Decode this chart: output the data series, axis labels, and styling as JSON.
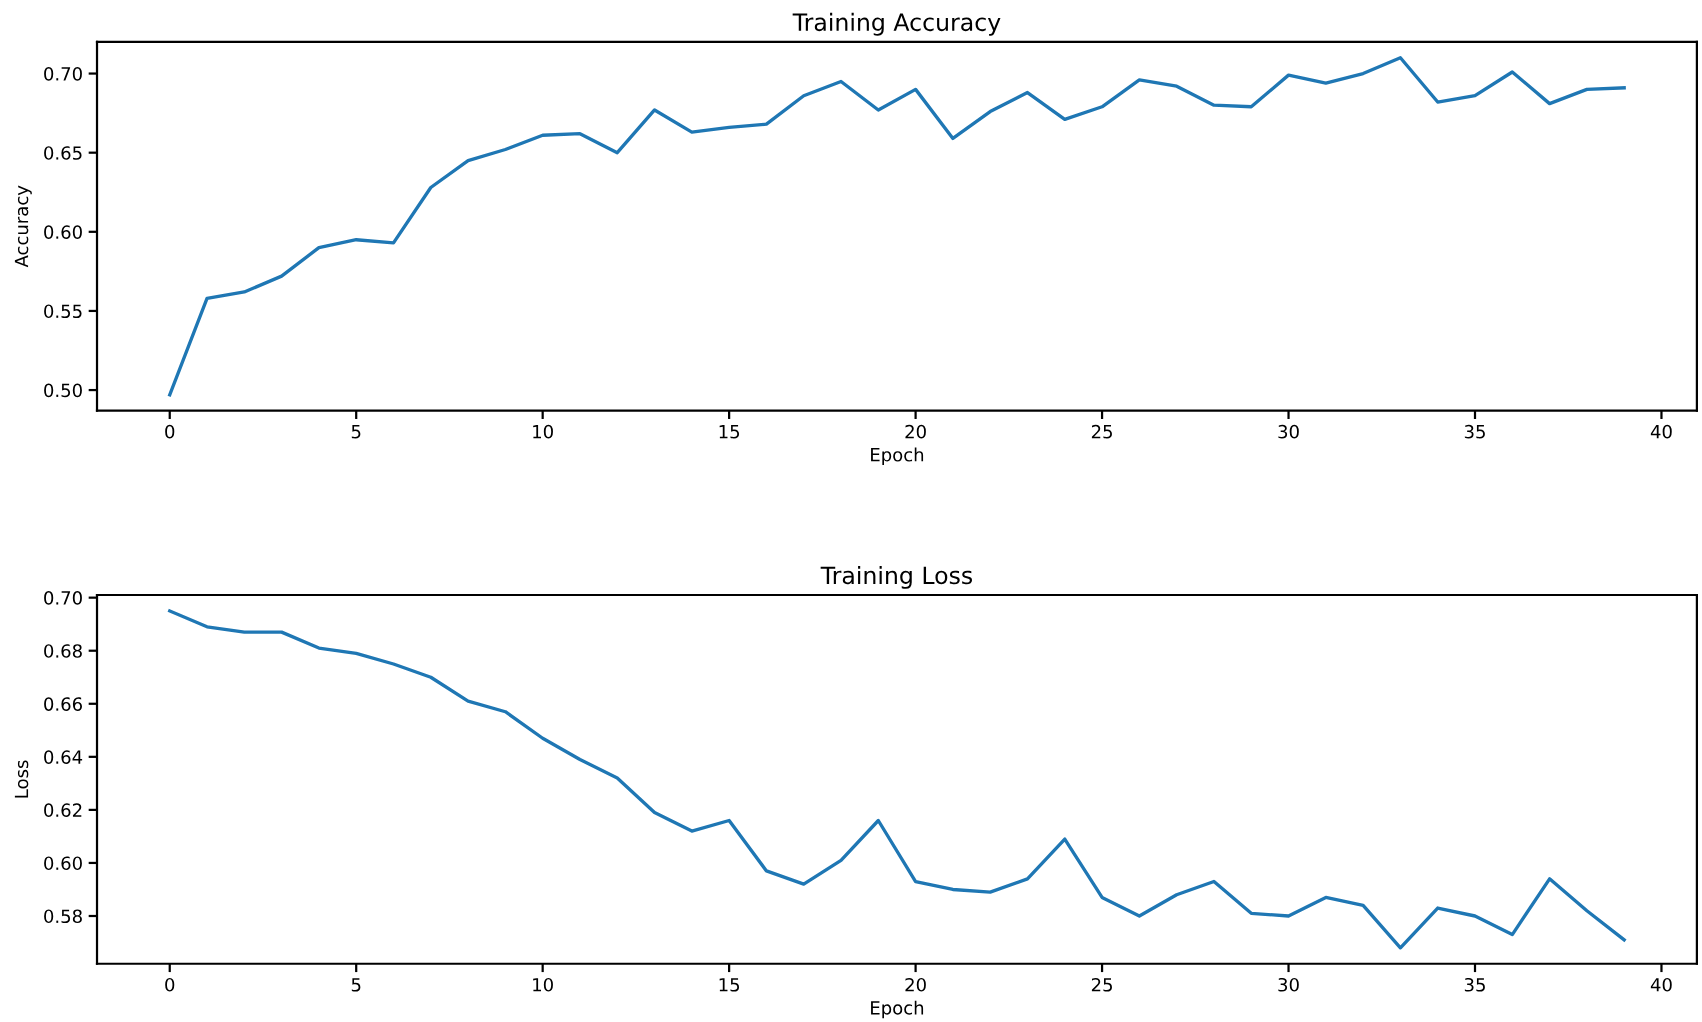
{
  "chart_data": [
    {
      "type": "line",
      "title": "Training Accuracy",
      "xlabel": "Epoch",
      "ylabel": "Accuracy",
      "x": [
        0,
        1,
        2,
        3,
        4,
        5,
        6,
        7,
        8,
        9,
        10,
        11,
        12,
        13,
        14,
        15,
        16,
        17,
        18,
        19,
        20,
        21,
        22,
        23,
        24,
        25,
        26,
        27,
        28,
        29,
        30,
        31,
        32,
        33,
        34,
        35,
        36,
        37,
        38,
        39
      ],
      "series": [
        {
          "color": "#1f77b4",
          "values": [
            0.497,
            0.558,
            0.562,
            0.572,
            0.59,
            0.595,
            0.593,
            0.628,
            0.645,
            0.652,
            0.661,
            0.662,
            0.65,
            0.677,
            0.663,
            0.666,
            0.668,
            0.686,
            0.695,
            0.677,
            0.69,
            0.659,
            0.676,
            0.688,
            0.671,
            0.679,
            0.696,
            0.692,
            0.68,
            0.679,
            0.699,
            0.694,
            0.7,
            0.71,
            0.682,
            0.686,
            0.701,
            0.681,
            0.69,
            0.691
          ]
        }
      ],
      "xlim": [
        -1.95,
        40.95
      ],
      "xticks": [
        0,
        5,
        10,
        15,
        20,
        25,
        30,
        35,
        40
      ],
      "ylim": [
        0.487,
        0.72
      ],
      "yticks": [
        {
          "value": 0.5,
          "label": "0.50"
        },
        {
          "value": 0.55,
          "label": "0.55"
        },
        {
          "value": 0.6,
          "label": "0.60"
        },
        {
          "value": 0.65,
          "label": "0.65"
        },
        {
          "value": 0.7,
          "label": "0.70"
        }
      ],
      "grid": false,
      "legend": false
    },
    {
      "type": "line",
      "title": "Training Loss",
      "xlabel": "Epoch",
      "ylabel": "Loss",
      "x": [
        0,
        1,
        2,
        3,
        4,
        5,
        6,
        7,
        8,
        9,
        10,
        11,
        12,
        13,
        14,
        15,
        16,
        17,
        18,
        19,
        20,
        21,
        22,
        23,
        24,
        25,
        26,
        27,
        28,
        29,
        30,
        31,
        32,
        33,
        34,
        35,
        36,
        37,
        38,
        39
      ],
      "series": [
        {
          "color": "#1f77b4",
          "values": [
            0.695,
            0.689,
            0.687,
            0.687,
            0.681,
            0.679,
            0.675,
            0.67,
            0.661,
            0.657,
            0.647,
            0.639,
            0.632,
            0.619,
            0.612,
            0.616,
            0.597,
            0.592,
            0.601,
            0.616,
            0.593,
            0.59,
            0.589,
            0.594,
            0.609,
            0.587,
            0.58,
            0.588,
            0.593,
            0.581,
            0.58,
            0.587,
            0.584,
            0.568,
            0.583,
            0.58,
            0.573,
            0.594,
            0.582,
            0.571
          ]
        }
      ],
      "xlim": [
        -1.95,
        40.95
      ],
      "xticks": [
        0,
        5,
        10,
        15,
        20,
        25,
        30,
        35,
        40
      ],
      "ylim": [
        0.562,
        0.701
      ],
      "yticks": [
        {
          "value": 0.58,
          "label": "0.58"
        },
        {
          "value": 0.6,
          "label": "0.60"
        },
        {
          "value": 0.62,
          "label": "0.62"
        },
        {
          "value": 0.64,
          "label": "0.64"
        },
        {
          "value": 0.66,
          "label": "0.66"
        },
        {
          "value": 0.68,
          "label": "0.68"
        },
        {
          "value": 0.7,
          "label": "0.70"
        }
      ],
      "grid": false,
      "legend": false
    }
  ]
}
